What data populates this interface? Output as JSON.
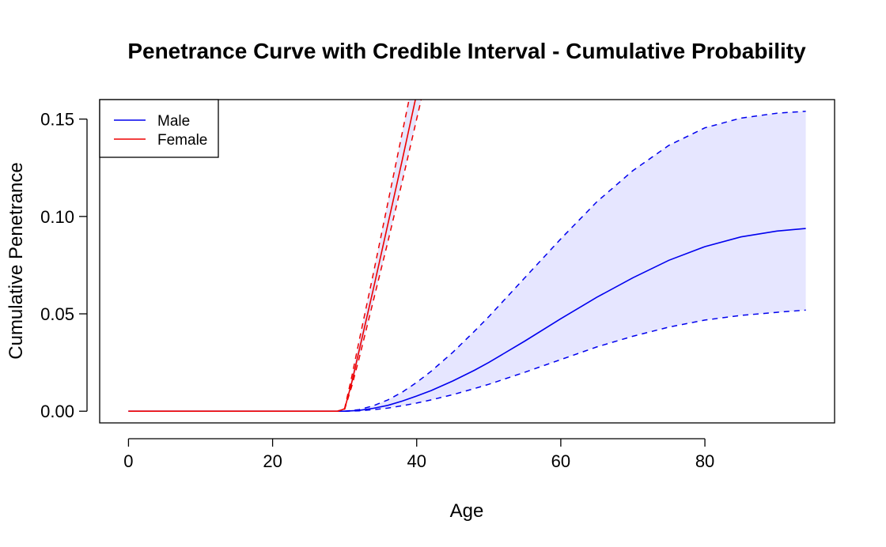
{
  "chart_data": {
    "type": "line",
    "title": "Penetrance Curve with Credible Interval - Cumulative Probability",
    "xlabel": "Age",
    "ylabel": "Cumulative Penetrance",
    "xlim": [
      -4,
      98
    ],
    "ylim": [
      -0.006,
      0.16
    ],
    "x_ticks": [
      "0",
      "20",
      "40",
      "60",
      "80"
    ],
    "x_tick_values": [
      0,
      20,
      40,
      60,
      80
    ],
    "y_ticks": [
      "0.00",
      "0.05",
      "0.10",
      "0.15"
    ],
    "y_tick_values": [
      0,
      0.05,
      0.1,
      0.15
    ],
    "grid": false,
    "legend": {
      "position": "top-left",
      "entries": [
        {
          "label": "Male",
          "color": "#0000ee"
        },
        {
          "label": "Female",
          "color": "#ee0000"
        }
      ]
    },
    "series": [
      {
        "name": "Male",
        "color": "#0000ee",
        "band_fill": "#e6e6ff",
        "x": [
          0,
          10,
          20,
          30,
          32,
          34,
          36,
          38,
          40,
          42,
          45,
          48,
          50,
          55,
          60,
          65,
          70,
          75,
          80,
          85,
          90,
          94
        ],
        "values": [
          0,
          0,
          0,
          0,
          0.0004,
          0.0015,
          0.003,
          0.0052,
          0.0078,
          0.0106,
          0.0155,
          0.021,
          0.025,
          0.036,
          0.0475,
          0.0585,
          0.0685,
          0.0775,
          0.0845,
          0.0895,
          0.0925,
          0.0938
        ],
        "lower": [
          0,
          0,
          0,
          0,
          0.0002,
          0.0008,
          0.0016,
          0.0028,
          0.0042,
          0.0058,
          0.0085,
          0.0116,
          0.0138,
          0.02,
          0.0265,
          0.033,
          0.0385,
          0.0432,
          0.0468,
          0.0492,
          0.0508,
          0.0519
        ],
        "upper": [
          0,
          0,
          0,
          0,
          0.0008,
          0.0028,
          0.0058,
          0.0098,
          0.0148,
          0.0205,
          0.0302,
          0.041,
          0.0485,
          0.0685,
          0.0885,
          0.1075,
          0.1235,
          0.1365,
          0.1455,
          0.1505,
          0.153,
          0.154
        ]
      },
      {
        "name": "Female",
        "color": "#ee0000",
        "band_fill": "#e6e6ff",
        "x": [
          0,
          10,
          20,
          29,
          30,
          31,
          32,
          34,
          36,
          38,
          39,
          40,
          41
        ],
        "values": [
          0,
          0,
          0,
          0,
          0.0012,
          0.015,
          0.031,
          0.063,
          0.096,
          0.129,
          0.146,
          0.163,
          0.18
        ],
        "lower": [
          0,
          0,
          0,
          0,
          0.001,
          0.013,
          0.027,
          0.057,
          0.087,
          0.118,
          0.134,
          0.15,
          0.166
        ],
        "upper": [
          0,
          0,
          0,
          0,
          0.0015,
          0.018,
          0.036,
          0.071,
          0.107,
          0.143,
          0.161,
          0.179,
          0.197
        ]
      }
    ]
  }
}
